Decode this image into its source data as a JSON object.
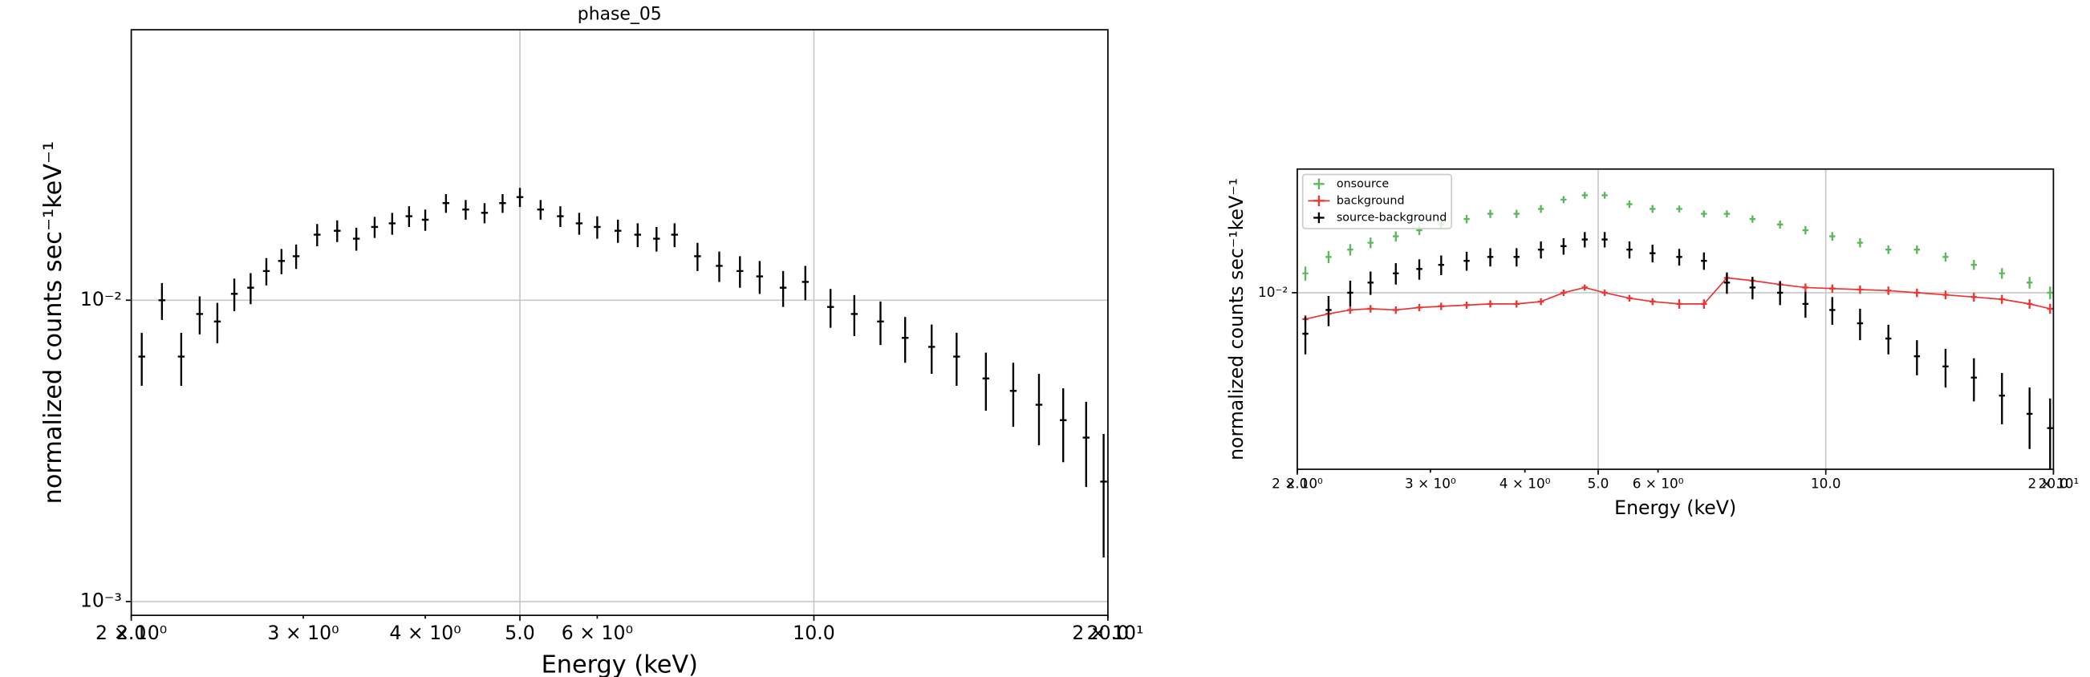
{
  "chart_data": [
    {
      "type": "errorbar",
      "title": "phase_05",
      "xlabel": "Energy (keV)",
      "ylabel": "normalized counts sec⁻¹keV⁻¹",
      "xscale": "log",
      "yscale": "log",
      "grid": true,
      "xlim": [
        2,
        20
      ],
      "ylim": [
        0.0009,
        0.079
      ],
      "xticks": [
        {
          "value": 2,
          "label": "2.0"
        },
        {
          "value": 5,
          "label": "5.0"
        },
        {
          "value": 10,
          "label": "10.0"
        },
        {
          "value": 20,
          "label": "20.0"
        }
      ],
      "xminorticks": [
        {
          "value": 2,
          "label": "2 × 10⁰"
        },
        {
          "value": 3,
          "label": "3 × 10⁰"
        },
        {
          "value": 4,
          "label": "4 × 10⁰"
        },
        {
          "value": 6,
          "label": "6 × 10⁰"
        },
        {
          "value": 20,
          "label": "2 × 10¹"
        }
      ],
      "yticks": [
        {
          "value": 0.01,
          "label": "10⁻²"
        },
        {
          "value": 0.001,
          "label": "10⁻³"
        }
      ],
      "x": [
        2.05,
        2.15,
        2.25,
        2.35,
        2.45,
        2.55,
        2.65,
        2.75,
        2.85,
        2.95,
        3.1,
        3.25,
        3.4,
        3.55,
        3.7,
        3.85,
        4.0,
        4.2,
        4.4,
        4.6,
        4.8,
        5.0,
        5.25,
        5.5,
        5.75,
        6.0,
        6.3,
        6.6,
        6.9,
        7.2,
        7.6,
        8.0,
        8.4,
        8.8,
        9.3,
        9.8,
        10.4,
        11.0,
        11.7,
        12.4,
        13.2,
        14.0,
        15.0,
        16.0,
        17.0,
        18.0,
        19.0,
        19.8
      ],
      "series": [
        {
          "color": "#000000",
          "values": [
            0.0065,
            0.01,
            0.0065,
            0.009,
            0.0085,
            0.0105,
            0.011,
            0.0125,
            0.0135,
            0.014,
            0.0165,
            0.017,
            0.016,
            0.0175,
            0.018,
            0.019,
            0.0185,
            0.021,
            0.02,
            0.0195,
            0.021,
            0.022,
            0.02,
            0.019,
            0.018,
            0.0175,
            0.017,
            0.0165,
            0.016,
            0.0165,
            0.014,
            0.013,
            0.0125,
            0.012,
            0.011,
            0.0115,
            0.0095,
            0.009,
            0.0085,
            0.0075,
            0.007,
            0.0065,
            0.0055,
            0.005,
            0.0045,
            0.004,
            0.0035,
            0.0025
          ],
          "errors": [
            0.0013,
            0.0014,
            0.0013,
            0.0013,
            0.0013,
            0.0013,
            0.0013,
            0.0013,
            0.0013,
            0.0013,
            0.0014,
            0.0014,
            0.0014,
            0.0014,
            0.0015,
            0.0015,
            0.0015,
            0.0015,
            0.0015,
            0.0015,
            0.0015,
            0.0016,
            0.0015,
            0.0015,
            0.0015,
            0.0015,
            0.0015,
            0.0015,
            0.0015,
            0.0015,
            0.0015,
            0.0015,
            0.0015,
            0.0015,
            0.0015,
            0.0015,
            0.0014,
            0.0014,
            0.0014,
            0.0013,
            0.0013,
            0.0013,
            0.0012,
            0.0012,
            0.0012,
            0.0011,
            0.0011,
            0.0011
          ]
        }
      ]
    },
    {
      "type": "errorbar",
      "xlabel": "Energy (keV)",
      "ylabel": "normalized counts sec⁻¹keV⁻¹",
      "xscale": "log",
      "yscale": "log",
      "grid": true,
      "legend": "upper left",
      "xlim": [
        2,
        20
      ],
      "ylim": [
        0.0019,
        0.032
      ],
      "xticks": [
        {
          "value": 2,
          "label": "2.0"
        },
        {
          "value": 5,
          "label": "5.0"
        },
        {
          "value": 10,
          "label": "10.0"
        },
        {
          "value": 20,
          "label": "20.0"
        }
      ],
      "xminorticks": [
        {
          "value": 2,
          "label": "2 × 10⁰"
        },
        {
          "value": 3,
          "label": "3 × 10⁰"
        },
        {
          "value": 4,
          "label": "4 × 10⁰"
        },
        {
          "value": 6,
          "label": "6 × 10⁰"
        },
        {
          "value": 20,
          "label": "2 × 10¹"
        }
      ],
      "yticks": [
        {
          "value": 0.01,
          "label": "10⁻²"
        }
      ],
      "x": [
        2.05,
        2.2,
        2.35,
        2.5,
        2.7,
        2.9,
        3.1,
        3.35,
        3.6,
        3.9,
        4.2,
        4.5,
        4.8,
        5.1,
        5.5,
        5.9,
        6.4,
        6.9,
        7.4,
        8.0,
        8.7,
        9.4,
        10.2,
        11.1,
        12.1,
        13.2,
        14.4,
        15.7,
        17.1,
        18.6,
        19.8
      ],
      "series": [
        {
          "name": "onsource",
          "color": "#5cb85c",
          "values": [
            0.012,
            0.014,
            0.015,
            0.016,
            0.017,
            0.018,
            0.019,
            0.02,
            0.021,
            0.021,
            0.022,
            0.024,
            0.025,
            0.025,
            0.023,
            0.022,
            0.022,
            0.021,
            0.021,
            0.02,
            0.019,
            0.018,
            0.017,
            0.016,
            0.015,
            0.015,
            0.014,
            0.013,
            0.012,
            0.011,
            0.01
          ],
          "errors": [
            0.0008,
            0.0008,
            0.0008,
            0.0008,
            0.0008,
            0.0008,
            0.0008,
            0.0008,
            0.0008,
            0.0008,
            0.0008,
            0.0008,
            0.0008,
            0.0008,
            0.0008,
            0.0008,
            0.0007,
            0.0007,
            0.0007,
            0.0007,
            0.0007,
            0.0007,
            0.0007,
            0.0007,
            0.0006,
            0.0006,
            0.0006,
            0.0006,
            0.0006,
            0.0006,
            0.0006
          ]
        },
        {
          "name": "background",
          "color": "#ee3333",
          "linestyle": "solid",
          "values": [
            0.0078,
            0.0082,
            0.0085,
            0.0086,
            0.0085,
            0.0087,
            0.0088,
            0.0089,
            0.009,
            0.009,
            0.0092,
            0.01,
            0.0105,
            0.01,
            0.0095,
            0.0092,
            0.009,
            0.009,
            0.0115,
            0.0112,
            0.0108,
            0.0105,
            0.0104,
            0.0103,
            0.0102,
            0.01,
            0.0098,
            0.0096,
            0.0094,
            0.009,
            0.0086
          ],
          "errors": [
            0.0003,
            0.0003,
            0.0003,
            0.0003,
            0.0003,
            0.0003,
            0.0003,
            0.0003,
            0.0003,
            0.0003,
            0.0003,
            0.0003,
            0.0003,
            0.0003,
            0.0003,
            0.0003,
            0.0004,
            0.0004,
            0.0004,
            0.0004,
            0.0004,
            0.0004,
            0.0004,
            0.0004,
            0.0004,
            0.0004,
            0.0004,
            0.0004,
            0.0004,
            0.0004,
            0.0004
          ]
        },
        {
          "name": "source-background",
          "color": "#000000",
          "values": [
            0.0068,
            0.0085,
            0.01,
            0.011,
            0.012,
            0.0125,
            0.013,
            0.0135,
            0.014,
            0.014,
            0.015,
            0.0155,
            0.0165,
            0.0165,
            0.015,
            0.0145,
            0.014,
            0.0135,
            0.011,
            0.0105,
            0.01,
            0.009,
            0.0085,
            0.0075,
            0.0065,
            0.0055,
            0.005,
            0.0045,
            0.0038,
            0.0032,
            0.0028
          ],
          "errors": [
            0.0012,
            0.0012,
            0.0012,
            0.0012,
            0.0012,
            0.0012,
            0.0012,
            0.0012,
            0.0012,
            0.0012,
            0.0012,
            0.0012,
            0.0012,
            0.0012,
            0.0012,
            0.0012,
            0.0011,
            0.0011,
            0.0011,
            0.0011,
            0.0011,
            0.0011,
            0.0011,
            0.0011,
            0.0009,
            0.0009,
            0.0009,
            0.0009,
            0.0009,
            0.0009,
            0.0009
          ]
        }
      ]
    }
  ]
}
